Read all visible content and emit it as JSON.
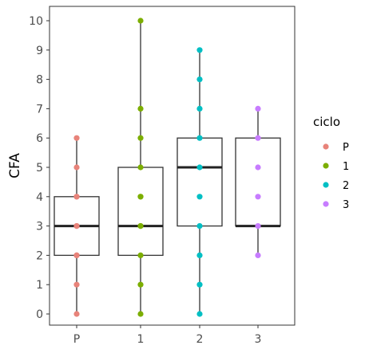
{
  "chart_data": {
    "type": "boxplot",
    "title": "",
    "xlabel": "",
    "ylabel": "CFA",
    "categories": [
      "P",
      "1",
      "2",
      "3"
    ],
    "y_ticks": [
      0,
      1,
      2,
      3,
      4,
      5,
      6,
      7,
      8,
      9,
      10
    ],
    "ylim": [
      -0.5,
      10.5
    ],
    "grid": false,
    "legend": {
      "title": "ciclo",
      "position": "right",
      "entries": [
        "P",
        "1",
        "2",
        "3"
      ]
    },
    "colors": {
      "P": "#E8837A",
      "1": "#7CAE00",
      "2": "#00BFC4",
      "3": "#C77CFF"
    },
    "series": [
      {
        "category": "P",
        "box": {
          "min": 0,
          "q1": 2,
          "median": 3,
          "q3": 4,
          "max": 6
        },
        "points": [
          0,
          1,
          2,
          2,
          3,
          3,
          4,
          4,
          5,
          6
        ]
      },
      {
        "category": "1",
        "box": {
          "min": 0,
          "q1": 2,
          "median": 3,
          "q3": 5,
          "max": 10
        },
        "points": [
          0,
          1,
          2,
          3,
          3,
          4,
          4,
          5,
          6,
          7,
          10
        ]
      },
      {
        "category": "2",
        "box": {
          "min": 0,
          "q1": 3,
          "median": 5,
          "q3": 6,
          "max": 9
        },
        "points": [
          0,
          1,
          2,
          3,
          4,
          5,
          6,
          7,
          8,
          9
        ]
      },
      {
        "category": "3",
        "box": {
          "min": 2,
          "q1": 3,
          "median": 3,
          "q3": 6,
          "max": 7
        },
        "points": [
          2,
          3,
          4,
          5,
          6,
          7
        ]
      }
    ]
  }
}
